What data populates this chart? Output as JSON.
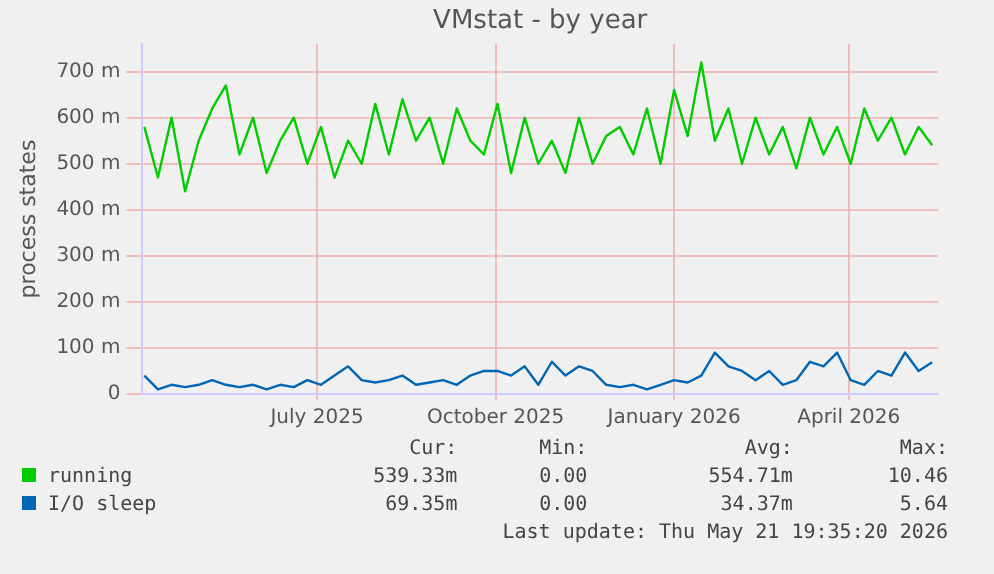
{
  "chart_data": {
    "type": "line",
    "title": "VMstat - by year",
    "ylabel": "process states",
    "x": [
      "2025-04-03",
      "2025-04-10",
      "2025-04-17",
      "2025-04-24",
      "2025-05-01",
      "2025-05-08",
      "2025-05-15",
      "2025-05-22",
      "2025-05-29",
      "2025-06-05",
      "2025-06-12",
      "2025-06-19",
      "2025-06-26",
      "2025-07-03",
      "2025-07-10",
      "2025-07-17",
      "2025-07-24",
      "2025-07-31",
      "2025-08-07",
      "2025-08-14",
      "2025-08-21",
      "2025-08-28",
      "2025-09-04",
      "2025-09-11",
      "2025-09-18",
      "2025-09-25",
      "2025-10-02",
      "2025-10-09",
      "2025-10-16",
      "2025-10-23",
      "2025-10-30",
      "2025-11-06",
      "2025-11-13",
      "2025-11-20",
      "2025-11-27",
      "2025-12-04",
      "2025-12-11",
      "2025-12-18",
      "2025-12-25",
      "2026-01-01",
      "2026-01-08",
      "2026-01-15",
      "2026-01-22",
      "2026-01-29",
      "2026-02-05",
      "2026-02-12",
      "2026-02-19",
      "2026-02-26",
      "2026-03-05",
      "2026-03-12",
      "2026-03-19",
      "2026-03-26",
      "2026-04-02",
      "2026-04-09",
      "2026-04-16",
      "2026-04-23",
      "2026-04-30",
      "2026-05-07",
      "2026-05-14"
    ],
    "series": [
      {
        "name": "running",
        "color": "#00cc00",
        "values": [
          580,
          470,
          600,
          440,
          550,
          620,
          670,
          520,
          600,
          480,
          550,
          600,
          500,
          580,
          470,
          550,
          500,
          630,
          520,
          640,
          550,
          600,
          500,
          620,
          550,
          520,
          630,
          480,
          600,
          500,
          550,
          480,
          600,
          500,
          560,
          580,
          520,
          620,
          500,
          660,
          560,
          720,
          550,
          620,
          500,
          600,
          520,
          580,
          490,
          600,
          520,
          580,
          500,
          620,
          550,
          600,
          520,
          580,
          540
        ]
      },
      {
        "name": "I/O sleep",
        "color": "#0066b3",
        "values": [
          40,
          10,
          20,
          15,
          20,
          30,
          20,
          15,
          20,
          10,
          20,
          15,
          30,
          20,
          40,
          60,
          30,
          25,
          30,
          40,
          20,
          25,
          30,
          20,
          40,
          50,
          50,
          40,
          60,
          20,
          70,
          40,
          60,
          50,
          20,
          15,
          20,
          10,
          20,
          30,
          25,
          40,
          90,
          60,
          50,
          30,
          50,
          20,
          30,
          70,
          60,
          90,
          30,
          20,
          50,
          40,
          90,
          50,
          69
        ]
      }
    ],
    "xlim": [
      "2025-04-02",
      "2026-05-17"
    ],
    "xticks": [
      {
        "value": "2025-07-01",
        "label": "July 2025"
      },
      {
        "value": "2025-10-01",
        "label": "October 2025"
      },
      {
        "value": "2026-01-01",
        "label": "January 2026"
      },
      {
        "value": "2026-04-01",
        "label": "April 2026"
      }
    ],
    "ylim": [
      0,
      760
    ],
    "yticks": [
      0,
      {
        "value": 100,
        "label": "100 m"
      },
      {
        "value": 200,
        "label": "200 m"
      },
      {
        "value": 300,
        "label": "300 m"
      },
      {
        "value": 400,
        "label": "400 m"
      },
      {
        "value": 500,
        "label": "500 m"
      },
      {
        "value": 600,
        "label": "600 m"
      },
      {
        "value": 700,
        "label": "700 m"
      }
    ],
    "grid": true,
    "legend": "bottom",
    "marker": "none",
    "line_style": "solid",
    "annotations": [
      "Cur:",
      "Min:",
      "Avg:",
      "Max:",
      "539.33m",
      "0.00",
      "554.71m",
      "10.46",
      "69.35m",
      "0.00",
      "34.37m",
      "5.64",
      "Last update: Thu May 21 19:35:20 2026"
    ]
  }
}
